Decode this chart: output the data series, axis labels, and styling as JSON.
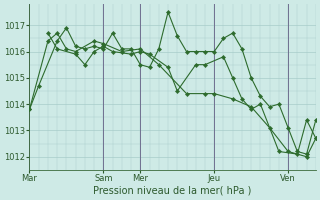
{
  "background_color": "#ceeae6",
  "grid_color": "#a8ccca",
  "line_color": "#2d6b2d",
  "marker_color": "#2d6b2d",
  "xlabel": "Pression niveau de la mer( hPa )",
  "ylim": [
    1011.5,
    1017.8
  ],
  "yticks": [
    1012,
    1013,
    1014,
    1015,
    1016,
    1017
  ],
  "x_day_labels": [
    "Mar",
    "Sam",
    "Mer",
    "Jeu",
    "Ven"
  ],
  "x_day_positions": [
    0,
    4,
    6,
    10,
    14
  ],
  "xlim": [
    0,
    15.5
  ],
  "series": [
    [
      [
        0,
        1013.8
      ],
      [
        0.5,
        1014.7
      ],
      [
        1.5,
        1016.4
      ],
      [
        2.0,
        1016.9
      ],
      [
        2.5,
        1016.2
      ],
      [
        3.0,
        1016.1
      ],
      [
        3.5,
        1016.2
      ],
      [
        4.0,
        1016.1
      ],
      [
        4.5,
        1016.7
      ],
      [
        5.0,
        1016.1
      ],
      [
        5.5,
        1016.1
      ],
      [
        6.0,
        1015.5
      ],
      [
        6.5,
        1015.4
      ],
      [
        7.0,
        1016.1
      ],
      [
        7.5,
        1017.5
      ],
      [
        8.0,
        1016.6
      ],
      [
        8.5,
        1016.0
      ],
      [
        9.0,
        1016.0
      ],
      [
        9.5,
        1016.0
      ],
      [
        10.0,
        1016.0
      ],
      [
        10.5,
        1016.5
      ],
      [
        11.0,
        1016.7
      ],
      [
        11.5,
        1016.1
      ],
      [
        12.0,
        1015.0
      ],
      [
        12.5,
        1014.3
      ],
      [
        13.0,
        1013.9
      ],
      [
        13.5,
        1014.0
      ],
      [
        14.0,
        1013.1
      ],
      [
        14.5,
        1012.2
      ],
      [
        15.0,
        1012.1
      ],
      [
        15.5,
        1013.4
      ]
    ],
    [
      [
        0,
        1013.8
      ],
      [
        1.0,
        1016.4
      ],
      [
        1.5,
        1016.7
      ],
      [
        2.0,
        1016.1
      ],
      [
        2.5,
        1016.0
      ],
      [
        3.5,
        1016.4
      ],
      [
        4.0,
        1016.3
      ],
      [
        5.0,
        1016.0
      ],
      [
        6.0,
        1016.1
      ],
      [
        7.0,
        1015.5
      ],
      [
        8.5,
        1014.4
      ],
      [
        9.5,
        1014.4
      ],
      [
        10.0,
        1014.4
      ],
      [
        11.0,
        1014.2
      ],
      [
        12.0,
        1013.9
      ],
      [
        13.0,
        1013.1
      ],
      [
        14.0,
        1012.2
      ],
      [
        15.0,
        1012.0
      ],
      [
        15.5,
        1012.7
      ]
    ],
    [
      [
        1.0,
        1016.7
      ],
      [
        1.5,
        1016.1
      ],
      [
        2.5,
        1015.9
      ],
      [
        3.0,
        1015.5
      ],
      [
        3.5,
        1016.0
      ],
      [
        4.0,
        1016.2
      ],
      [
        4.5,
        1016.0
      ],
      [
        5.5,
        1015.9
      ],
      [
        6.0,
        1016.0
      ],
      [
        6.5,
        1015.9
      ],
      [
        7.5,
        1015.4
      ],
      [
        8.0,
        1014.5
      ],
      [
        9.0,
        1015.5
      ],
      [
        9.5,
        1015.5
      ],
      [
        10.5,
        1015.8
      ],
      [
        11.0,
        1015.0
      ],
      [
        11.5,
        1014.2
      ],
      [
        12.0,
        1013.8
      ],
      [
        12.5,
        1014.0
      ],
      [
        13.5,
        1012.2
      ],
      [
        14.5,
        1012.1
      ],
      [
        15.0,
        1013.4
      ],
      [
        15.5,
        1012.7
      ]
    ]
  ],
  "vline_positions": [
    0,
    4,
    6,
    10,
    14
  ],
  "vline_color": "#707090"
}
